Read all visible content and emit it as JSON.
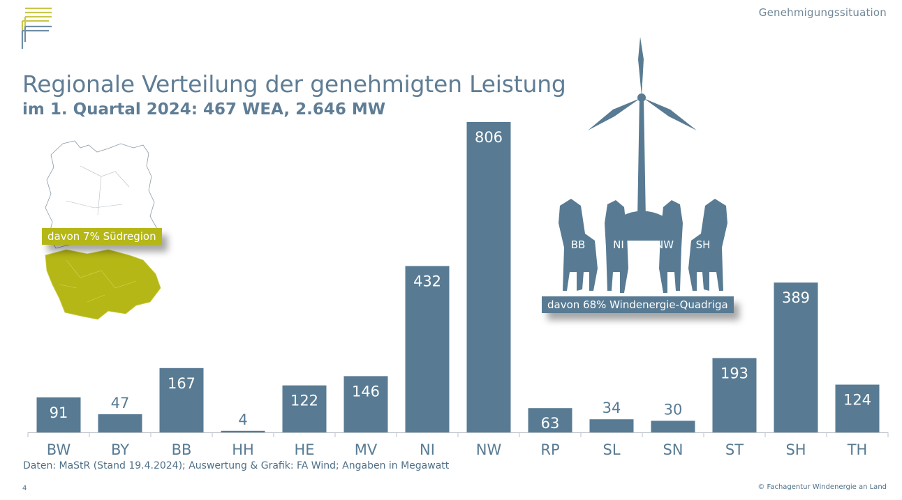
{
  "header": {
    "section_title": "Genehmigungssituation",
    "title": "Regionale Verteilung der genehmigten Leistung",
    "subtitle": "im 1. Quartal 2024: 467 WEA, 2.646 MW"
  },
  "callouts": {
    "south": "davon 7% Südregion",
    "quadriga": "davon 68% Windenergie-Quadriga",
    "quadriga_states": [
      "BB",
      "NI",
      "NW",
      "SH"
    ]
  },
  "footer": {
    "source": "Daten: MaStR (Stand 19.4.2024); Auswertung & Grafik: FA Wind; Angaben in Megawatt",
    "page_number": "4",
    "copyright": "© Fachagentur Windenergie an Land"
  },
  "colors": {
    "bar": "#587b93",
    "south_accent": "#b5b716",
    "text": "#5f7d95",
    "logo_yellow": "#c8c84a",
    "logo_blue": "#6f8fa6"
  },
  "chart_data": {
    "type": "bar",
    "categories": [
      "BW",
      "BY",
      "BB",
      "HH",
      "HE",
      "MV",
      "NI",
      "NW",
      "RP",
      "SL",
      "SN",
      "ST",
      "SH",
      "TH"
    ],
    "values": [
      91,
      47,
      167,
      4,
      122,
      146,
      432,
      806,
      63,
      34,
      30,
      193,
      389,
      124
    ],
    "ylim": [
      0,
      806
    ],
    "data_labels_inside": [
      true,
      false,
      true,
      false,
      true,
      true,
      true,
      true,
      true,
      false,
      false,
      true,
      true,
      true
    ],
    "grid": false,
    "legend": "none"
  }
}
